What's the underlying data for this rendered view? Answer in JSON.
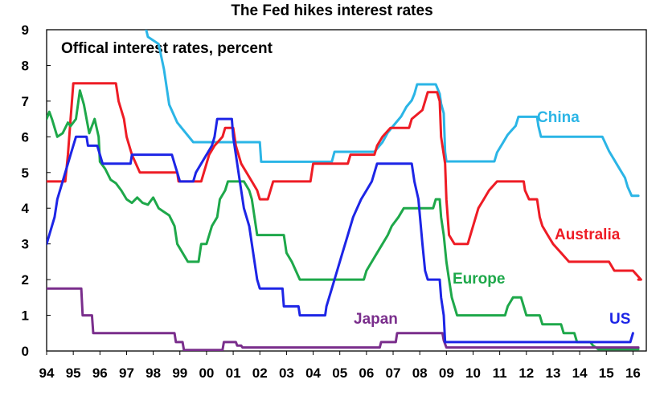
{
  "chart_data": {
    "type": "line",
    "title": "The Fed hikes interest rates",
    "subtitle": "Offical interest rates, percent",
    "ylim": [
      0,
      9
    ],
    "xlim": [
      1994,
      2016.5
    ],
    "y_ticks": [
      "0",
      "1",
      "2",
      "3",
      "4",
      "5",
      "6",
      "7",
      "8",
      "9"
    ],
    "x_ticks": [
      "94",
      "95",
      "96",
      "97",
      "98",
      "99",
      "00",
      "01",
      "02",
      "03",
      "04",
      "05",
      "06",
      "07",
      "08",
      "09",
      "10",
      "11",
      "12",
      "13",
      "14",
      "15",
      "16"
    ],
    "grid": false,
    "series": [
      {
        "name": "China",
        "color": "#2bb5e6",
        "points": [
          [
            1997.7,
            9.1
          ],
          [
            1997.8,
            8.8
          ],
          [
            1998.2,
            8.6
          ],
          [
            1998.4,
            7.9
          ],
          [
            1998.6,
            6.9
          ],
          [
            1998.9,
            6.4
          ],
          [
            1999.5,
            5.85
          ],
          [
            2001.0,
            5.85
          ],
          [
            2002.0,
            5.85
          ],
          [
            2002.05,
            5.3
          ],
          [
            2004.7,
            5.3
          ],
          [
            2004.8,
            5.58
          ],
          [
            2006.3,
            5.58
          ],
          [
            2006.6,
            5.85
          ],
          [
            2006.8,
            6.12
          ],
          [
            2007.1,
            6.39
          ],
          [
            2007.3,
            6.57
          ],
          [
            2007.5,
            6.84
          ],
          [
            2007.7,
            7.02
          ],
          [
            2007.8,
            7.2
          ],
          [
            2007.9,
            7.47
          ],
          [
            2008.6,
            7.47
          ],
          [
            2008.75,
            7.2
          ],
          [
            2008.8,
            6.93
          ],
          [
            2008.9,
            6.66
          ],
          [
            2008.95,
            5.58
          ],
          [
            2009.0,
            5.31
          ],
          [
            2010.8,
            5.31
          ],
          [
            2010.9,
            5.56
          ],
          [
            2011.1,
            5.81
          ],
          [
            2011.3,
            6.06
          ],
          [
            2011.6,
            6.31
          ],
          [
            2011.7,
            6.56
          ],
          [
            2012.4,
            6.56
          ],
          [
            2012.45,
            6.31
          ],
          [
            2012.55,
            6.0
          ],
          [
            2014.85,
            6.0
          ],
          [
            2015.1,
            5.6
          ],
          [
            2015.3,
            5.35
          ],
          [
            2015.5,
            5.1
          ],
          [
            2015.7,
            4.85
          ],
          [
            2015.8,
            4.6
          ],
          [
            2015.95,
            4.35
          ],
          [
            2016.2,
            4.35
          ]
        ]
      },
      {
        "name": "Australia",
        "color": "#ee1c25",
        "points": [
          [
            1994.0,
            4.75
          ],
          [
            1994.7,
            4.75
          ],
          [
            1994.8,
            5.5
          ],
          [
            1994.9,
            6.5
          ],
          [
            1995.0,
            7.5
          ],
          [
            1996.6,
            7.5
          ],
          [
            1996.7,
            7.0
          ],
          [
            1996.9,
            6.5
          ],
          [
            1997.0,
            6.0
          ],
          [
            1997.2,
            5.5
          ],
          [
            1997.5,
            5.0
          ],
          [
            1998.9,
            5.0
          ],
          [
            1998.95,
            4.75
          ],
          [
            1999.8,
            4.75
          ],
          [
            1999.9,
            5.0
          ],
          [
            2000.1,
            5.5
          ],
          [
            2000.3,
            5.75
          ],
          [
            2000.6,
            6.0
          ],
          [
            2000.7,
            6.25
          ],
          [
            2001.0,
            6.25
          ],
          [
            2001.1,
            5.75
          ],
          [
            2001.3,
            5.25
          ],
          [
            2001.7,
            4.75
          ],
          [
            2001.9,
            4.5
          ],
          [
            2002.0,
            4.25
          ],
          [
            2002.3,
            4.25
          ],
          [
            2002.4,
            4.5
          ],
          [
            2002.5,
            4.75
          ],
          [
            2003.9,
            4.75
          ],
          [
            2003.95,
            5.0
          ],
          [
            2004.0,
            5.25
          ],
          [
            2005.3,
            5.25
          ],
          [
            2005.4,
            5.5
          ],
          [
            2006.3,
            5.5
          ],
          [
            2006.4,
            5.75
          ],
          [
            2006.6,
            6.0
          ],
          [
            2006.9,
            6.25
          ],
          [
            2007.6,
            6.25
          ],
          [
            2007.7,
            6.5
          ],
          [
            2008.1,
            6.75
          ],
          [
            2008.2,
            7.0
          ],
          [
            2008.3,
            7.25
          ],
          [
            2008.65,
            7.25
          ],
          [
            2008.75,
            7.0
          ],
          [
            2008.8,
            6.0
          ],
          [
            2008.95,
            5.25
          ],
          [
            2009.0,
            4.25
          ],
          [
            2009.1,
            3.25
          ],
          [
            2009.3,
            3.0
          ],
          [
            2009.8,
            3.0
          ],
          [
            2009.9,
            3.25
          ],
          [
            2010.0,
            3.5
          ],
          [
            2010.2,
            4.0
          ],
          [
            2010.4,
            4.25
          ],
          [
            2010.6,
            4.5
          ],
          [
            2010.9,
            4.75
          ],
          [
            2011.9,
            4.75
          ],
          [
            2011.95,
            4.5
          ],
          [
            2012.1,
            4.25
          ],
          [
            2012.4,
            4.25
          ],
          [
            2012.5,
            3.75
          ],
          [
            2012.6,
            3.5
          ],
          [
            2012.8,
            3.25
          ],
          [
            2013.0,
            3.0
          ],
          [
            2013.3,
            2.75
          ],
          [
            2013.6,
            2.5
          ],
          [
            2015.1,
            2.5
          ],
          [
            2015.3,
            2.25
          ],
          [
            2016.0,
            2.25
          ],
          [
            2016.3,
            2.0
          ],
          [
            2016.3,
            2.0
          ],
          [
            2016.2,
            2.0
          ]
        ]
      },
      {
        "name": "Europe",
        "color": "#1ea84a",
        "points": [
          [
            1994.0,
            6.5
          ],
          [
            1994.1,
            6.7
          ],
          [
            1994.2,
            6.5
          ],
          [
            1994.4,
            6.0
          ],
          [
            1994.6,
            6.1
          ],
          [
            1994.8,
            6.4
          ],
          [
            1994.9,
            6.3
          ],
          [
            1995.1,
            6.5
          ],
          [
            1995.25,
            7.3
          ],
          [
            1995.4,
            6.9
          ],
          [
            1995.5,
            6.5
          ],
          [
            1995.6,
            6.1
          ],
          [
            1995.8,
            6.5
          ],
          [
            1995.95,
            6.0
          ],
          [
            1996.0,
            5.3
          ],
          [
            1996.2,
            5.1
          ],
          [
            1996.4,
            4.8
          ],
          [
            1996.6,
            4.7
          ],
          [
            1996.8,
            4.5
          ],
          [
            1997.0,
            4.25
          ],
          [
            1997.2,
            4.15
          ],
          [
            1997.4,
            4.3
          ],
          [
            1997.6,
            4.15
          ],
          [
            1997.8,
            4.1
          ],
          [
            1998.0,
            4.3
          ],
          [
            1998.2,
            4.0
          ],
          [
            1998.4,
            3.9
          ],
          [
            1998.6,
            3.8
          ],
          [
            1998.8,
            3.5
          ],
          [
            1998.9,
            3.0
          ],
          [
            1999.3,
            2.5
          ],
          [
            1999.7,
            2.5
          ],
          [
            1999.8,
            3.0
          ],
          [
            2000.0,
            3.0
          ],
          [
            2000.2,
            3.5
          ],
          [
            2000.4,
            3.75
          ],
          [
            2000.5,
            4.25
          ],
          [
            2000.7,
            4.5
          ],
          [
            2000.8,
            4.75
          ],
          [
            2001.4,
            4.75
          ],
          [
            2001.6,
            4.5
          ],
          [
            2001.7,
            4.25
          ],
          [
            2001.8,
            3.75
          ],
          [
            2001.9,
            3.25
          ],
          [
            2002.9,
            3.25
          ],
          [
            2003.0,
            2.75
          ],
          [
            2003.2,
            2.5
          ],
          [
            2003.5,
            2.0
          ],
          [
            2005.9,
            2.0
          ],
          [
            2006.0,
            2.25
          ],
          [
            2006.2,
            2.5
          ],
          [
            2006.4,
            2.75
          ],
          [
            2006.6,
            3.0
          ],
          [
            2006.8,
            3.25
          ],
          [
            2006.95,
            3.5
          ],
          [
            2007.2,
            3.75
          ],
          [
            2007.4,
            4.0
          ],
          [
            2008.5,
            4.0
          ],
          [
            2008.6,
            4.25
          ],
          [
            2008.75,
            4.25
          ],
          [
            2008.8,
            3.75
          ],
          [
            2008.9,
            3.25
          ],
          [
            2009.0,
            2.5
          ],
          [
            2009.1,
            2.0
          ],
          [
            2009.2,
            1.5
          ],
          [
            2009.3,
            1.25
          ],
          [
            2009.4,
            1.0
          ],
          [
            2011.2,
            1.0
          ],
          [
            2011.3,
            1.25
          ],
          [
            2011.5,
            1.5
          ],
          [
            2011.8,
            1.5
          ],
          [
            2011.9,
            1.25
          ],
          [
            2012.0,
            1.0
          ],
          [
            2012.5,
            1.0
          ],
          [
            2012.6,
            0.75
          ],
          [
            2013.3,
            0.75
          ],
          [
            2013.4,
            0.5
          ],
          [
            2013.8,
            0.5
          ],
          [
            2013.9,
            0.25
          ],
          [
            2014.4,
            0.25
          ],
          [
            2014.5,
            0.15
          ],
          [
            2014.7,
            0.05
          ],
          [
            2016.2,
            0.05
          ]
        ]
      },
      {
        "name": "Japan",
        "color": "#7a2e8c",
        "points": [
          [
            1994.0,
            1.75
          ],
          [
            1995.3,
            1.75
          ],
          [
            1995.35,
            1.0
          ],
          [
            1995.7,
            1.0
          ],
          [
            1995.75,
            0.5
          ],
          [
            1998.8,
            0.5
          ],
          [
            1998.85,
            0.25
          ],
          [
            1999.1,
            0.25
          ],
          [
            1999.15,
            0.03
          ],
          [
            2000.6,
            0.03
          ],
          [
            2000.65,
            0.25
          ],
          [
            2001.1,
            0.25
          ],
          [
            2001.15,
            0.15
          ],
          [
            2001.3,
            0.15
          ],
          [
            2001.35,
            0.1
          ],
          [
            2006.5,
            0.1
          ],
          [
            2006.55,
            0.25
          ],
          [
            2007.1,
            0.25
          ],
          [
            2007.15,
            0.5
          ],
          [
            2008.85,
            0.5
          ],
          [
            2008.9,
            0.3
          ],
          [
            2009.0,
            0.1
          ],
          [
            2016.2,
            0.1
          ]
        ]
      },
      {
        "name": "US",
        "color": "#1d25e6",
        "points": [
          [
            1994.0,
            3.0
          ],
          [
            1994.1,
            3.25
          ],
          [
            1994.3,
            3.75
          ],
          [
            1994.4,
            4.25
          ],
          [
            1994.6,
            4.75
          ],
          [
            1994.9,
            5.5
          ],
          [
            1995.1,
            6.0
          ],
          [
            1995.5,
            6.0
          ],
          [
            1995.55,
            5.75
          ],
          [
            1995.9,
            5.75
          ],
          [
            1996.0,
            5.5
          ],
          [
            1996.1,
            5.25
          ],
          [
            1997.15,
            5.25
          ],
          [
            1997.2,
            5.5
          ],
          [
            1998.7,
            5.5
          ],
          [
            1998.8,
            5.25
          ],
          [
            1998.9,
            5.0
          ],
          [
            1999.0,
            4.75
          ],
          [
            1999.5,
            4.75
          ],
          [
            1999.6,
            5.0
          ],
          [
            1999.8,
            5.25
          ],
          [
            2000.0,
            5.5
          ],
          [
            2000.2,
            5.75
          ],
          [
            2000.3,
            6.0
          ],
          [
            2000.4,
            6.5
          ],
          [
            2000.95,
            6.5
          ],
          [
            2001.0,
            6.0
          ],
          [
            2001.2,
            5.0
          ],
          [
            2001.4,
            4.0
          ],
          [
            2001.6,
            3.5
          ],
          [
            2001.8,
            2.5
          ],
          [
            2001.9,
            2.0
          ],
          [
            2002.0,
            1.75
          ],
          [
            2002.85,
            1.75
          ],
          [
            2002.9,
            1.25
          ],
          [
            2003.45,
            1.25
          ],
          [
            2003.5,
            1.0
          ],
          [
            2004.45,
            1.0
          ],
          [
            2004.5,
            1.25
          ],
          [
            2004.7,
            1.75
          ],
          [
            2004.9,
            2.25
          ],
          [
            2005.1,
            2.75
          ],
          [
            2005.3,
            3.25
          ],
          [
            2005.5,
            3.75
          ],
          [
            2005.8,
            4.25
          ],
          [
            2006.0,
            4.5
          ],
          [
            2006.2,
            4.75
          ],
          [
            2006.4,
            5.25
          ],
          [
            2007.7,
            5.25
          ],
          [
            2007.8,
            4.75
          ],
          [
            2007.95,
            4.25
          ],
          [
            2008.1,
            3.0
          ],
          [
            2008.2,
            2.25
          ],
          [
            2008.3,
            2.0
          ],
          [
            2008.75,
            2.0
          ],
          [
            2008.8,
            1.5
          ],
          [
            2008.9,
            1.0
          ],
          [
            2008.95,
            0.25
          ],
          [
            2015.9,
            0.25
          ],
          [
            2016.0,
            0.5
          ]
        ]
      }
    ]
  }
}
